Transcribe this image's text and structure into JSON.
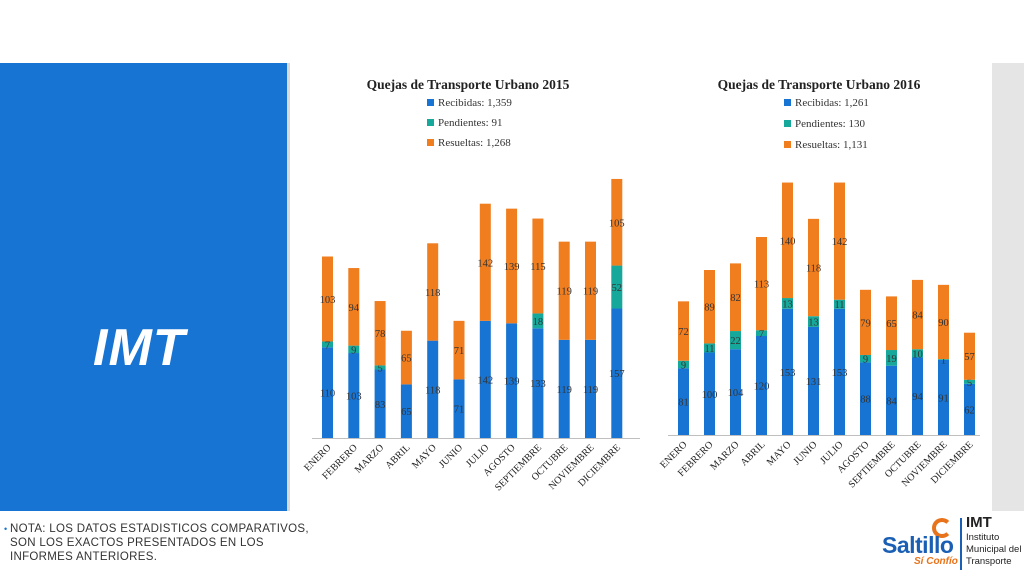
{
  "side_panel": {
    "title": "IMT"
  },
  "note": "NOTA: LOS DATOS ESTADISTICOS COMPARATIVOS, SON LOS EXACTOS PRESENTADOS EN LOS INFORMES ANTERIORES.",
  "logo": {
    "name": "Saltillo",
    "slogan": "Sí Confío",
    "org": "IMT",
    "org_full": [
      "Instituto",
      "Municipal del",
      "Transporte"
    ]
  },
  "colors": {
    "panel": "#1874d2",
    "recibidas": "#1874d2",
    "pendientes": "#16a89a",
    "resueltas": "#f07d1e"
  },
  "chart_data": [
    {
      "type": "bar",
      "stacked": true,
      "title": "Quejas de Transporte Urbano 2015",
      "legend": [
        {
          "label": "Recibidas: 1,359",
          "color": "#1874d2"
        },
        {
          "label": "Pendientes: 91",
          "color": "#16a89a"
        },
        {
          "label": "Resueltas: 1,268",
          "color": "#f07d1e"
        }
      ],
      "legend_position": "top",
      "categories": [
        "ENERO",
        "FEBRERO",
        "MARZO",
        "ABRIL",
        "MAYO",
        "JUNIO",
        "JULIO",
        "AGOSTO",
        "SEPTIEMBRE",
        "OCTUBRE",
        "NOVIEMBRE",
        "DICIEMBRE"
      ],
      "series": [
        {
          "name": "Recibidas",
          "color": "#1874d2",
          "values": [
            110,
            103,
            83,
            65,
            118,
            71,
            142,
            139,
            133,
            119,
            119,
            157
          ],
          "labels": [
            "110",
            "103",
            "83",
            "65",
            "118",
            "71",
            "142",
            "139",
            "133",
            "119",
            "119",
            "157"
          ]
        },
        {
          "name": "Pendientes",
          "color": "#16a89a",
          "values": [
            7,
            9,
            5,
            0,
            0,
            0,
            0,
            0,
            18,
            0,
            0,
            52
          ],
          "labels": [
            "7",
            "9",
            "5",
            "0",
            "0",
            "0",
            "0",
            "0",
            "18",
            "0",
            "0",
            "52"
          ]
        },
        {
          "name": "Resueltas",
          "color": "#f07d1e",
          "values": [
            103,
            94,
            78,
            65,
            118,
            71,
            142,
            139,
            115,
            119,
            119,
            105
          ],
          "labels": [
            "103",
            "94",
            "78",
            "65",
            "118",
            "71",
            "142",
            "139",
            "115",
            "119",
            "119",
            "105"
          ]
        }
      ],
      "ylim": [
        0,
        325
      ],
      "grid": false
    },
    {
      "type": "bar",
      "stacked": true,
      "title": "Quejas de Transporte Urbano 2016",
      "legend": [
        {
          "label": "Recibidas: 1,261",
          "color": "#1874d2"
        },
        {
          "label": "Pendientes: 130",
          "color": "#16a89a"
        },
        {
          "label": "Resueltas: 1,131",
          "color": "#f07d1e"
        }
      ],
      "legend_position": "top",
      "categories": [
        "ENERO",
        "FEBRERO",
        "MARZO",
        "ABRIL",
        "MAYO",
        "JUNIO",
        "JULIO",
        "AGOSTO",
        "SEPTIEMBRE",
        "OCTUBRE",
        "NOVIEMBRE",
        "DICIEMBRE"
      ],
      "series": [
        {
          "name": "Recibidas",
          "color": "#1874d2",
          "values": [
            81,
            100,
            104,
            120,
            153,
            131,
            153,
            88,
            84,
            94,
            91,
            62
          ],
          "labels": [
            "81",
            "100",
            "104",
            "120",
            "153",
            "131",
            "153",
            "88",
            "84",
            "94",
            "91",
            "62"
          ]
        },
        {
          "name": "Pendientes",
          "color": "#16a89a",
          "values": [
            9,
            11,
            22,
            7,
            13,
            13,
            11,
            9,
            19,
            10,
            1,
            5
          ],
          "labels": [
            "9",
            "11",
            "22",
            "7",
            "13",
            "13",
            "11",
            "9",
            "19",
            "10",
            "1",
            "5"
          ]
        },
        {
          "name": "Resueltas",
          "color": "#f07d1e",
          "values": [
            72,
            89,
            82,
            113,
            140,
            118,
            142,
            79,
            65,
            84,
            90,
            57
          ],
          "labels": [
            "72",
            "89",
            "82",
            "113",
            "140",
            "118",
            "142",
            "79",
            "65",
            "84",
            "90",
            "57"
          ]
        }
      ],
      "ylim": [
        0,
        325
      ],
      "grid": false
    }
  ]
}
